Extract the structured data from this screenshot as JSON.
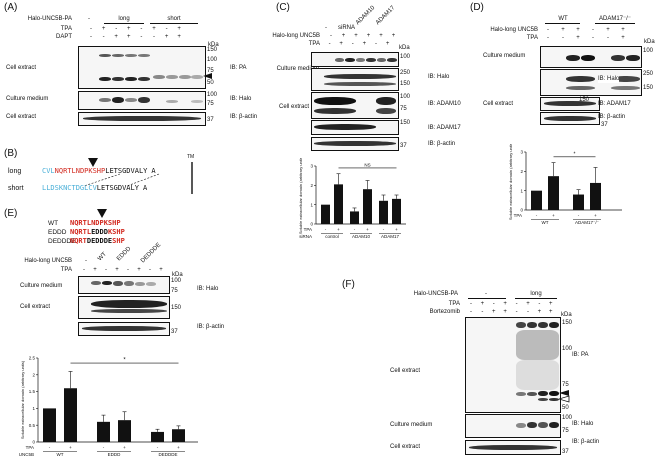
{
  "panels": {
    "A": {
      "label": "(A)",
      "construct": "Halo-UNC5B-PA",
      "groups": [
        "-",
        "long",
        "short"
      ],
      "rows": [
        {
          "name": "TPA",
          "values": [
            "-",
            "+",
            "-",
            "+",
            "-",
            "+",
            "-",
            "+",
            "-",
            "+"
          ]
        },
        {
          "name": "DAPT",
          "values": [
            "-",
            "-",
            "+",
            "+",
            "-",
            "-",
            "+",
            "+",
            "+",
            "+"
          ]
        }
      ],
      "kda": "kDa",
      "blots": [
        {
          "sample": "Cell extract",
          "ib": "IB: PA",
          "markers": [
            "150",
            "100",
            "75",
            "50"
          ]
        },
        {
          "sample": "Culture medium",
          "ib": "IB: Halo",
          "markers": [
            "100",
            "75"
          ]
        },
        {
          "sample": "Cell extract",
          "ib": "IB: β-actin",
          "markers": [
            "37"
          ]
        }
      ]
    },
    "B": {
      "label": "(B)",
      "tm": "TM",
      "long": {
        "name": "long",
        "pre": "CVL",
        "red": "NQRTLNDPKSHP",
        "post": "LETSGDVALY",
        "end": "A"
      },
      "short": {
        "name": "short",
        "pre": "LLDSKNCTDGLCV",
        "post": "LETSGDVALY",
        "end": "A"
      }
    },
    "C": {
      "label": "(C)",
      "sirna": "siRNA",
      "groups": [
        "-",
        "ADAM10",
        "ADAM17"
      ],
      "construct": "Halo-long UNC5B",
      "construct_values": [
        "-",
        "+",
        "+",
        "+",
        "+",
        "+"
      ],
      "tpa_values": [
        "-",
        "-",
        "+",
        "-",
        "+",
        "-",
        "+"
      ],
      "tpa": "TPA",
      "kda": "kDa",
      "blots": [
        {
          "sample": "Culture medium",
          "ib": "IB: Halo",
          "markers": [
            "100"
          ]
        },
        {
          "sample": "Cell extract",
          "ib": "IB: Halo",
          "markers": [
            "250",
            "150"
          ]
        },
        {
          "sample": "",
          "ib": "IB: ADAM10",
          "markers": [
            "100",
            "75"
          ]
        },
        {
          "sample": "",
          "ib": "IB: ADAM17",
          "markers": [
            "150"
          ]
        },
        {
          "sample": "",
          "ib": "IB: β-actin",
          "markers": [
            "37"
          ]
        }
      ]
    },
    "D": {
      "label": "(D)",
      "groups": [
        "WT",
        "ADAM17⁻/⁻"
      ],
      "construct": "Halo-long UNC5B",
      "construct_values": [
        "-",
        "+",
        "+",
        "-",
        "+",
        "+"
      ],
      "tpa_values": [
        "-",
        "-",
        "+",
        "-",
        "-",
        "+"
      ],
      "tpa": "TPA",
      "kda": "kDa",
      "blots": [
        {
          "sample": "Culture medium",
          "ib": "",
          "markers": [
            "100"
          ]
        },
        {
          "sample": "",
          "ib": "IB: Halo",
          "markers": [
            "250",
            "150"
          ]
        },
        {
          "sample": "Cell extract",
          "ib": "IB: ADAM17",
          "markers": [
            "150"
          ]
        },
        {
          "sample": "",
          "ib": "IB: β-actin",
          "markers": [
            "37"
          ]
        }
      ]
    },
    "E": {
      "label": "(E)",
      "seqs": [
        {
          "name": "WT",
          "red": "NQRTLNDPKSHP"
        },
        {
          "name": "EDDD",
          "red1": "NQRTL",
          "blk": "EDDD",
          "red2": "KSHP"
        },
        {
          "name": "DEDDDE",
          "red1": "NQRT",
          "blk": "DEDDDE",
          "red2": "SHP"
        }
      ],
      "construct": "Halo-long UNC5B",
      "groups": [
        "-",
        "WT",
        "EDDD",
        "DEDDDE"
      ],
      "tpa": "TPA",
      "tpa_values": [
        "-",
        "+",
        "-",
        "+",
        "-",
        "+",
        "-",
        "+"
      ],
      "kda": "kDa",
      "blots": [
        {
          "sample": "Culture medium",
          "ib": "IB: Halo",
          "markers": [
            "100",
            "75"
          ]
        },
        {
          "sample": "Cell extract",
          "ib": "",
          "markers": [
            "150"
          ]
        },
        {
          "sample": "",
          "ib": "IB: β-actin",
          "markers": [
            "37"
          ]
        }
      ]
    },
    "F": {
      "label": "(F)",
      "construct": "Halo-UNC5B-PA",
      "groups": [
        "-",
        "long"
      ],
      "rows": [
        {
          "name": "TPA",
          "values": [
            "-",
            "+",
            "-",
            "+",
            "-",
            "+",
            "-",
            "+"
          ]
        },
        {
          "name": "Bortezomib",
          "values": [
            "-",
            "-",
            "+",
            "+",
            "-",
            "-",
            "+",
            "+"
          ]
        }
      ],
      "kda": "kDa",
      "blots": [
        {
          "sample": "Cell extract",
          "ib": "IB: PA",
          "markers": [
            "150",
            "100",
            "75",
            "50"
          ]
        },
        {
          "sample": "Culture medium",
          "ib": "IB: Halo",
          "markers": [
            "100",
            "75"
          ]
        },
        {
          "sample": "Cell extract",
          "ib": "IB: β-actin",
          "markers": [
            "37"
          ]
        }
      ]
    }
  },
  "chart_data": [
    {
      "type": "bar",
      "panel": "C",
      "ylabel": "Soluble extracellular domain (arbitrary units)",
      "row1": [
        "-",
        "+",
        "-",
        "+",
        "-",
        "+"
      ],
      "row1_label": "TPA",
      "row2_label": "siRNA",
      "row2": [
        "control",
        "ADAM10",
        "ADAM17"
      ],
      "categories": [
        "control -",
        "control +",
        "ADAM10 -",
        "ADAM10 +",
        "ADAM17 -",
        "ADAM17 +"
      ],
      "values": [
        1.0,
        2.05,
        0.65,
        1.8,
        1.2,
        1.3
      ],
      "errors": [
        0.0,
        0.55,
        0.18,
        0.45,
        0.3,
        0.2
      ],
      "ylim": [
        0,
        3
      ],
      "yticks": [
        "0",
        "1",
        "2",
        "3"
      ],
      "annotation": "NS"
    },
    {
      "type": "bar",
      "panel": "D",
      "ylabel": "Soluble extracellular domain (arbitrary units)",
      "row1_label": "TPA",
      "row1": [
        "-",
        "+",
        "-",
        "+"
      ],
      "row2": [
        "WT",
        "ADAM17⁻/⁻"
      ],
      "categories": [
        "WT -",
        "WT +",
        "ADAM17 -",
        "ADAM17 +"
      ],
      "values": [
        1.0,
        1.75,
        0.8,
        1.4
      ],
      "errors": [
        0.0,
        0.7,
        0.25,
        0.8
      ],
      "ylim": [
        0,
        3
      ],
      "yticks": [
        "0",
        "1",
        "2",
        "3"
      ],
      "annotation": "*"
    },
    {
      "type": "bar",
      "panel": "E",
      "ylabel": "Soluble extracellular domain (arbitrary units)",
      "row1_label": "TPA",
      "row1": [
        "-",
        "+",
        "-",
        "+",
        "-",
        "+"
      ],
      "row2_label": "UNC5B",
      "row2": [
        "WT",
        "EDDD",
        "DEDDDE"
      ],
      "categories": [
        "WT -",
        "WT +",
        "EDDD -",
        "EDDD +",
        "DEDDDE -",
        "DEDDDE +"
      ],
      "values": [
        1.0,
        1.6,
        0.6,
        0.65,
        0.3,
        0.38
      ],
      "errors": [
        0.0,
        0.5,
        0.2,
        0.25,
        0.08,
        0.1
      ],
      "ylim": [
        0,
        2.5
      ],
      "yticks": [
        "0",
        "0.5",
        "1",
        "1.5",
        "2",
        "2.5"
      ],
      "annotation": "*"
    }
  ]
}
